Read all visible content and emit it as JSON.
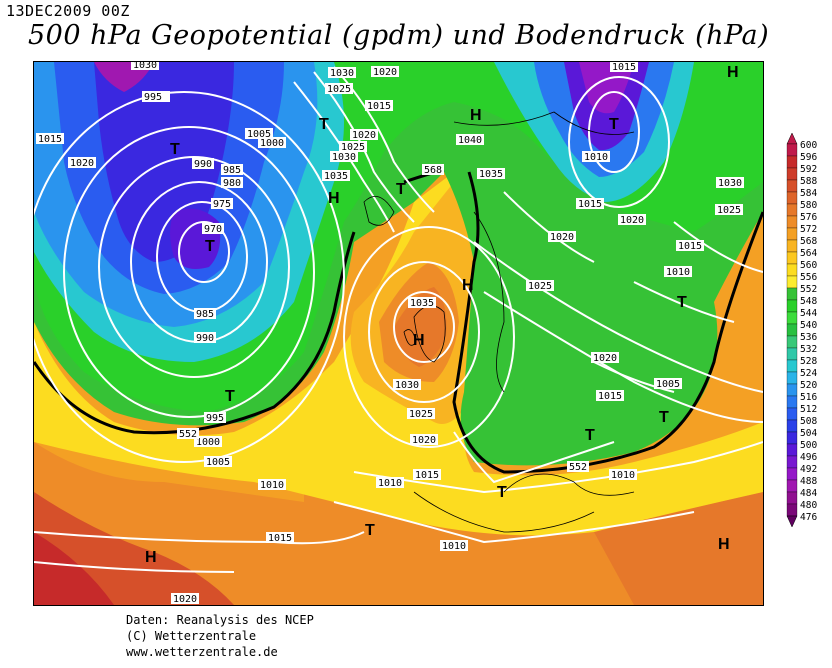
{
  "header": {
    "datestamp": "13DEC2009 00Z",
    "title": "500 hPa Geopotential (gpdm) und Bodendruck (hPa)"
  },
  "credits": {
    "line1": "Daten: Reanalysis des NCEP",
    "line2": "(C) Wetterzentrale",
    "line3": "www.wetterzentrale.de"
  },
  "legend": {
    "values": [
      600,
      596,
      592,
      588,
      584,
      580,
      576,
      572,
      568,
      564,
      560,
      556,
      552,
      548,
      544,
      540,
      536,
      532,
      528,
      524,
      520,
      516,
      512,
      508,
      504,
      500,
      496,
      492,
      488,
      484,
      480,
      476
    ],
    "colors": [
      "#c01a4a",
      "#c62a2a",
      "#ce3c2a",
      "#d6502a",
      "#de642a",
      "#e6782a",
      "#ee8c28",
      "#f4a024",
      "#f8b422",
      "#fcc820",
      "#fcdc20",
      "#fcec30",
      "#36c236",
      "#2ad02a",
      "#3cdc3c",
      "#28c040",
      "#38c878",
      "#30c8a8",
      "#28c8d0",
      "#2ab4e8",
      "#2a94ee",
      "#2a78f0",
      "#2a5cf0",
      "#2a40e8",
      "#3a28e0",
      "#5a18d8",
      "#7818d0",
      "#9418c8",
      "#a018b0",
      "#901090",
      "#7a0878",
      "#600060"
    ]
  },
  "map": {
    "isobar_labels": [
      "1030",
      "1020",
      "1025",
      "1015",
      "1030",
      "1025",
      "1030",
      "1035",
      "1020",
      "1015",
      "995",
      "1000",
      "1005",
      "1015",
      "1020",
      "990",
      "985",
      "980",
      "975",
      "970",
      "985",
      "990",
      "995",
      "1000",
      "1005",
      "1010",
      "1015",
      "1020",
      "1035",
      "1030",
      "1025",
      "1020",
      "1015",
      "1010",
      "1010",
      "1015",
      "1010",
      "1040",
      "1035",
      "1025",
      "1020",
      "1015",
      "1020",
      "1015",
      "1010",
      "1005",
      "1010",
      "1015",
      "1010",
      "1025",
      "1020",
      "1030",
      "1015",
      "1025"
    ],
    "height_labels": [
      "568",
      "552",
      "552",
      "552"
    ],
    "pressure_centers": [
      "T",
      "H",
      "T",
      "H",
      "T",
      "H",
      "T",
      "T",
      "H",
      "T",
      "T",
      "T",
      "H",
      "T",
      "T",
      "H",
      "T",
      "H",
      "H"
    ]
  }
}
